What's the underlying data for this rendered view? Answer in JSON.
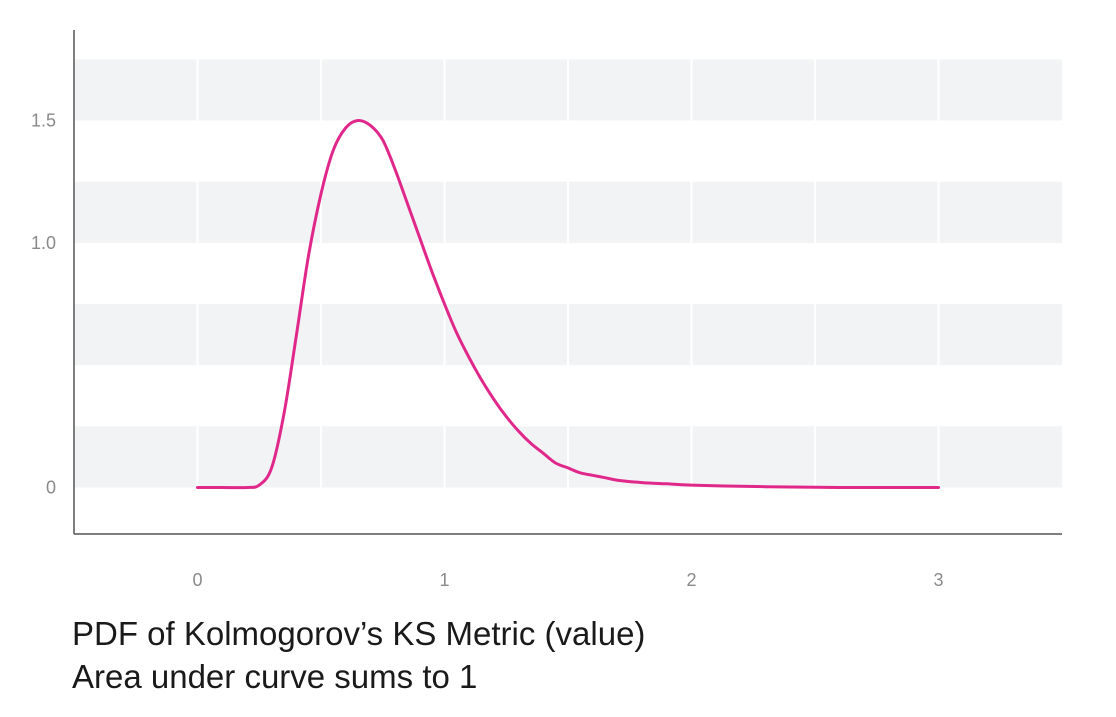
{
  "chart_data": {
    "type": "line",
    "title": "PDF of Kolmogorov’s KS Metric (value)",
    "subtitle": "Area under curve sums to 1",
    "xlabel": "",
    "ylabel": "",
    "xlim": [
      -0.5,
      3.5
    ],
    "ylim": [
      -0.19,
      1.87
    ],
    "x_ticks": [
      0,
      1,
      2,
      3
    ],
    "x_tick_labels": [
      "0",
      "1",
      "2",
      "3"
    ],
    "y_ticks": [
      0,
      1.0,
      1.5
    ],
    "y_tick_labels": [
      "0",
      "1.0",
      "1.5"
    ],
    "grid": "horizontal bands",
    "band_color": "#f2f3f5",
    "line_color": "#e0288b",
    "series": [
      {
        "x": [
          0,
          0.1,
          0.2,
          0.25,
          0.3,
          0.35,
          0.4,
          0.45,
          0.5,
          0.55,
          0.6,
          0.65,
          0.7,
          0.75,
          0.8,
          0.85,
          0.9,
          0.95,
          1.0,
          1.05,
          1.1,
          1.15,
          1.2,
          1.25,
          1.3,
          1.35,
          1.4,
          1.45,
          1.5,
          1.55,
          1.6,
          1.65,
          1.7,
          1.8,
          1.9,
          2.0,
          2.2,
          2.4,
          2.6,
          2.8,
          3.0
        ],
        "y": [
          0,
          0,
          0,
          0.01,
          0.08,
          0.3,
          0.62,
          0.95,
          1.2,
          1.38,
          1.47,
          1.5,
          1.48,
          1.42,
          1.3,
          1.16,
          1.02,
          0.88,
          0.75,
          0.63,
          0.53,
          0.44,
          0.36,
          0.29,
          0.23,
          0.18,
          0.14,
          0.1,
          0.08,
          0.06,
          0.05,
          0.04,
          0.03,
          0.02,
          0.015,
          0.01,
          0.005,
          0.002,
          0,
          0,
          0
        ]
      }
    ]
  }
}
